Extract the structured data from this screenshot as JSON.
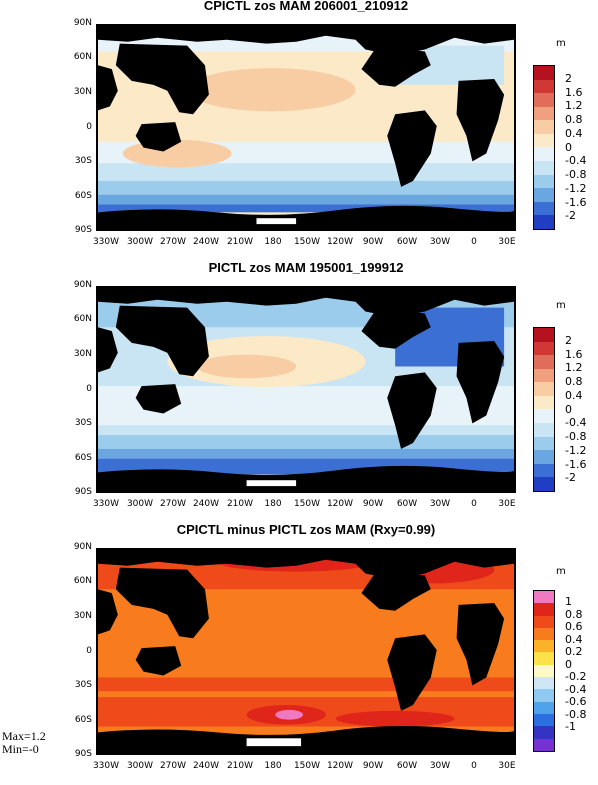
{
  "panels": [
    {
      "title": "CPICTL zos MAM 206001_210912",
      "unit": "m",
      "colorbar_labels": [
        "2",
        "1.6",
        "1.2",
        "0.8",
        "0.4",
        "0",
        "-0.4",
        "-0.8",
        "-1.2",
        "-1.6",
        "-2"
      ],
      "colors": [
        "#b3121e",
        "#cf3834",
        "#e06c5a",
        "#f0a07f",
        "#f8cda3",
        "#fbe9c8",
        "#e8f3f9",
        "#c9e4f3",
        "#9cccec",
        "#6aa6df",
        "#3b6fd4",
        "#1f3ec1"
      ]
    },
    {
      "title": "PICTL zos MAM 195001_199912",
      "unit": "m",
      "colorbar_labels": [
        "2",
        "1.6",
        "1.2",
        "0.8",
        "0.4",
        "0",
        "-0.4",
        "-0.8",
        "-1.2",
        "-1.6",
        "-2"
      ],
      "colors": [
        "#b3121e",
        "#cf3834",
        "#e06c5a",
        "#f0a07f",
        "#f8cda3",
        "#fbe9c8",
        "#e8f3f9",
        "#c9e4f3",
        "#9cccec",
        "#6aa6df",
        "#3b6fd4",
        "#1f3ec1"
      ]
    },
    {
      "title": "CPICTL minus PICTL zos MAM (Rxy=0.99)",
      "unit": "m",
      "colorbar_labels": [
        "1",
        "0.8",
        "0.6",
        "0.4",
        "0.2",
        "0",
        "-0.2",
        "-0.4",
        "-0.6",
        "-0.8",
        "-1"
      ],
      "colors": [
        "#f07ac2",
        "#e0261a",
        "#ef4b1a",
        "#f87c1e",
        "#fcb228",
        "#fde04a",
        "#fff8c8",
        "#cfe6f7",
        "#8fc8f1",
        "#4fa3ea",
        "#2c6fe0",
        "#3434c4",
        "#7a2fd4"
      ]
    }
  ],
  "lat_labels": [
    "90N",
    "60N",
    "30N",
    "0",
    "30S",
    "60S",
    "90S"
  ],
  "lon_labels": [
    "330W",
    "300W",
    "270W",
    "240W",
    "210W",
    "180",
    "150W",
    "120W",
    "90W",
    "60W",
    "30W",
    "0",
    "30E"
  ],
  "stats": {
    "max": "Max=1.2",
    "min": "Min=-0"
  }
}
